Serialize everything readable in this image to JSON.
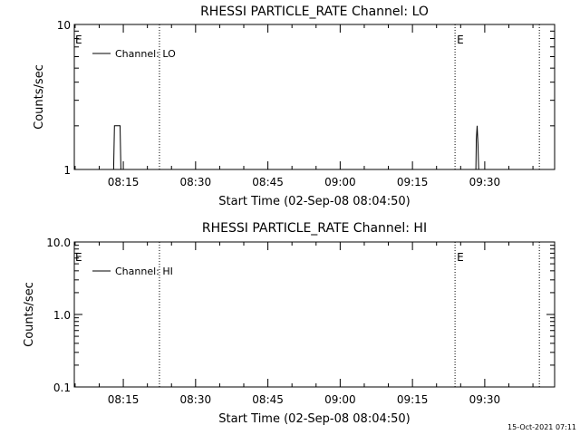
{
  "chart_data": [
    {
      "type": "line",
      "title": "RHESSI PARTICLE_RATE Channel: LO",
      "xlabel": "Start Time (02-Sep-08 08:04:50)",
      "ylabel": "Counts/sec",
      "yscale": "log",
      "ylim": [
        1,
        10
      ],
      "y_ticks": [
        1,
        10
      ],
      "y_tick_labels": [
        "1",
        "10"
      ],
      "xlim": [
        "08:04:50",
        "09:44:30"
      ],
      "x_ticks": [
        "08:15",
        "08:30",
        "08:45",
        "09:00",
        "09:15",
        "09:30"
      ],
      "legend": {
        "placement": "top-left",
        "entries": [
          "Channel: LO"
        ]
      },
      "series": [
        {
          "name": "Channel: LO",
          "points": [
            [
              "08:13:00",
              1
            ],
            [
              "08:13:10",
              2
            ],
            [
              "08:14:20",
              2
            ],
            [
              "08:14:30",
              1
            ],
            [
              "09:28:10",
              1
            ],
            [
              "09:28:15",
              1.6
            ],
            [
              "09:28:25",
              2
            ],
            [
              "09:28:35",
              1.5
            ],
            [
              "09:28:45",
              1
            ]
          ]
        }
      ],
      "markers": [
        {
          "time": "08:22:30",
          "label": ""
        },
        {
          "time": "09:23:50",
          "label": "E"
        },
        {
          "time": "09:41:20",
          "label": ""
        }
      ],
      "left_edge_label": "E"
    },
    {
      "type": "line",
      "title": "RHESSI PARTICLE_RATE Channel: HI",
      "xlabel": "Start Time (02-Sep-08 08:04:50)",
      "ylabel": "Counts/sec",
      "yscale": "log",
      "ylim": [
        0.1,
        10
      ],
      "y_ticks": [
        0.1,
        1,
        10
      ],
      "y_tick_labels": [
        "0.1",
        "1.0",
        "10.0"
      ],
      "xlim": [
        "08:04:50",
        "09:44:30"
      ],
      "x_ticks": [
        "08:15",
        "08:30",
        "08:45",
        "09:00",
        "09:15",
        "09:30"
      ],
      "legend": {
        "placement": "top-left",
        "entries": [
          "Channel: HI"
        ]
      },
      "series": [
        {
          "name": "Channel: HI",
          "points": []
        }
      ],
      "markers": [
        {
          "time": "08:22:30",
          "label": ""
        },
        {
          "time": "09:23:50",
          "label": "E"
        },
        {
          "time": "09:41:20",
          "label": ""
        }
      ],
      "left_edge_label": "E"
    }
  ],
  "footer": {
    "timestamp": "15-Oct-2021 07:11"
  }
}
